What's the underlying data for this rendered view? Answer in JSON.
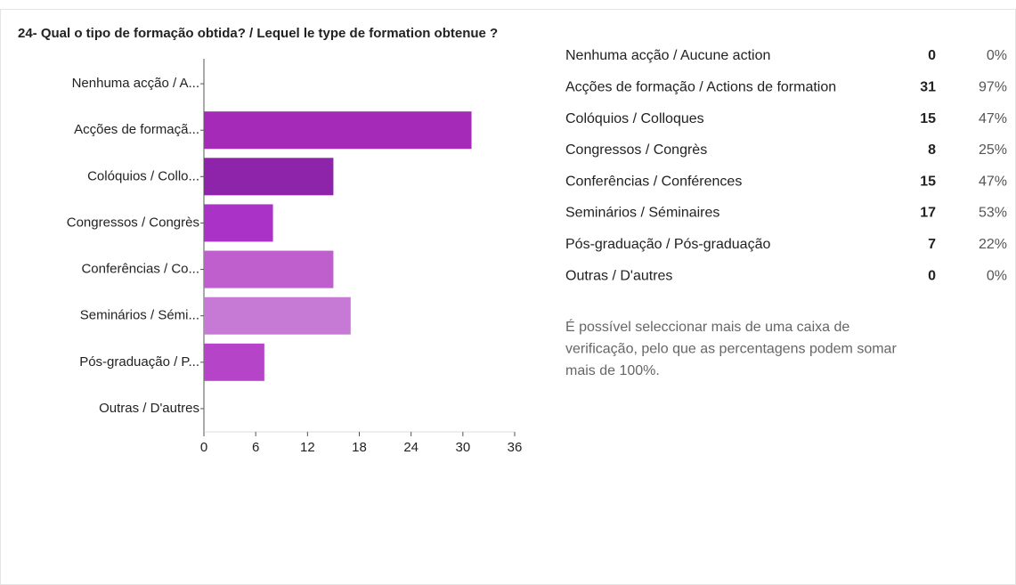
{
  "chart_data": {
    "type": "barh",
    "title": "24- Qual o tipo de formação obtida? / Lequel le type de formation obtenue ?",
    "categories": [
      "Nenhuma acção / A...",
      "Acções de formaçã...",
      "Colóquios / Collo...",
      "Congressos / Congrès",
      "Conferências / Co...",
      "Seminários / Sémi...",
      "Pós-graduação / P...",
      "Outras / D'autres"
    ],
    "values": [
      0,
      31,
      15,
      8,
      15,
      17,
      7,
      0
    ],
    "colors": [
      "#a62ab8",
      "#a62ab8",
      "#8e24aa",
      "#ab32c6",
      "#bf5fce",
      "#c77ad5",
      "#b544c9",
      "#a62ab8"
    ],
    "xlim": [
      0,
      36
    ],
    "xticks": [
      0,
      6,
      12,
      18,
      24,
      30,
      36
    ]
  },
  "table": {
    "rows": [
      [
        "Nenhuma acção / Aucune action",
        "0",
        "0%"
      ],
      [
        "Acções de formação / Actions de formation",
        "31",
        "97%"
      ],
      [
        "Colóquios / Colloques",
        "15",
        "47%"
      ],
      [
        "Congressos / Congrès",
        "8",
        "25%"
      ],
      [
        "Conferências / Conférences",
        "15",
        "47%"
      ],
      [
        "Seminários / Séminaires",
        "17",
        "53%"
      ],
      [
        "Pós-graduação / Pós-graduação",
        "7",
        "22%"
      ],
      [
        "Outras / D'autres",
        "0",
        "0%"
      ]
    ]
  },
  "note": [
    "É possível seleccionar mais de uma caixa de",
    "verificação, pelo que as percentagens podem somar",
    "mais de 100%."
  ]
}
